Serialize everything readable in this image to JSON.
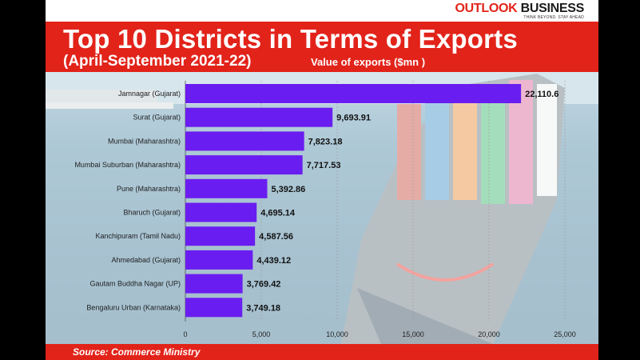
{
  "brand": {
    "name_part1": "OUTLOOK",
    "name_part2": "BUSINESS",
    "tagline": "THINK BEYOND. STAY AHEAD"
  },
  "colors": {
    "accent_red": "#e2231a",
    "bar_purple": "#6a1df0"
  },
  "source": "Source: Commerce Ministry",
  "chart_data": {
    "type": "bar",
    "orientation": "horizontal",
    "title": "Top 10 Districts in Terms of Exports",
    "subtitle": "(April-September 2021-22)",
    "unit_label": "Value of exports ($mn )",
    "categories": [
      "Jamnagar (Gujarat)",
      "Surat (Gujarat)",
      "Mumbai (Maharashtra)",
      "Mumbai Suburban (Maharashtra)",
      "Pune (Maharashtra)",
      "Bharuch (Gujarat)",
      "Kanchipuram (Tamil Nadu)",
      "Ahmedabad (Gujarat)",
      "Gautam Buddha Nagar (UP)",
      "Bengaluru Urban (Karnataka)"
    ],
    "values": [
      22110.6,
      9693.91,
      7823.18,
      7717.53,
      5392.86,
      4695.14,
      4587.56,
      4439.12,
      3769.42,
      3749.18
    ],
    "value_labels": [
      "22,110.6",
      "9,693.91",
      "7,823.18",
      "7,717.53",
      "5,392.86",
      "4,695.14",
      "4,587.56",
      "4,439.12",
      "3,769.42",
      "3,749.18"
    ],
    "xlim": [
      0,
      25000
    ],
    "xticks": [
      0,
      5000,
      10000,
      15000,
      20000,
      25000
    ],
    "xtick_labels": [
      "0",
      "5,000",
      "10,000",
      "15,000",
      "20,000",
      "25,000"
    ],
    "grid": true
  }
}
